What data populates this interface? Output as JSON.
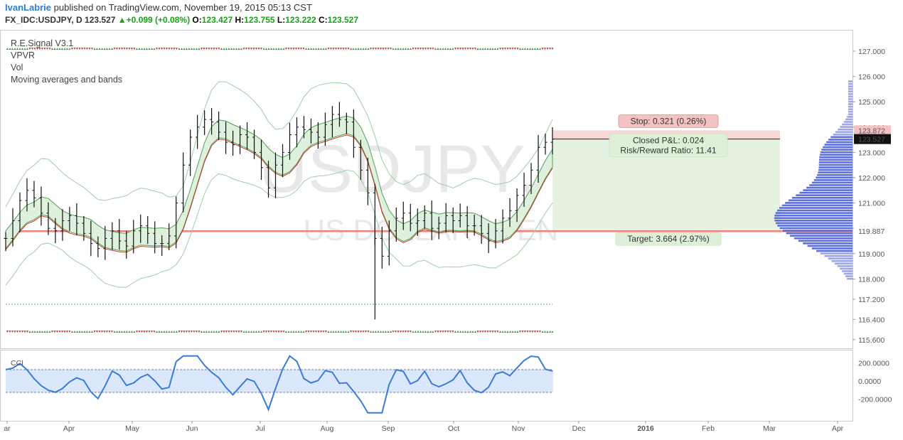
{
  "header": {
    "user": "IvanLabrie",
    "published_text": "published on TradingView.com, November 19, 2015 05:13 CST"
  },
  "quote": {
    "symbol": "FX_IDC:USDJPY, D",
    "last": "123.527",
    "change": "+0.099 (+0.08%)",
    "open_label": "O:",
    "open": "123.427",
    "high_label": "H:",
    "high": "123.755",
    "low_label": "L:",
    "low": "123.222",
    "close_label": "C:",
    "close": "123.527"
  },
  "indicators": [
    "R.E.Signal V3.1",
    "VPVR",
    "Vol",
    "Moving averages and bands"
  ],
  "watermark": {
    "symbol": "USDJPY, D",
    "name": "US DOLLAR / YEN"
  },
  "price_axis": {
    "ticks": [
      "127.000",
      "126.000",
      "125.000",
      "124.000",
      "123.000",
      "122.000",
      "121.000",
      "120.000",
      "119.000",
      "118.000",
      "117.200",
      "116.400",
      "115.600"
    ],
    "last_price_label": "123.527",
    "stop_price_label": "123.872",
    "target_price_label": "119.887"
  },
  "position": {
    "stop_label": "Stop: 0.321 (0.26%)",
    "pnl_label": "Closed P&L: 0.024",
    "rr_label": "Risk/Reward Ratio: 11.41",
    "target_label": "Target: 3.664 (2.97%)"
  },
  "cci": {
    "label": "CCI",
    "ticks": [
      "200.0000",
      "0.0000",
      "-200.0000"
    ]
  },
  "time_axis": [
    "ar",
    "Apr",
    "May",
    "Jun",
    "Jul",
    "Aug",
    "Sep",
    "Oct",
    "Nov",
    "Dec",
    "2016",
    "Feb",
    "Mar",
    "Apr"
  ],
  "colors": {
    "stop_zone": "#f4c7c7",
    "target_zone": "#e6f2e1",
    "target_line": "#f08080",
    "volume_profile": "#4a5fd8",
    "cci_line": "#3a7bd5",
    "band_fill": "#dff0df",
    "up_marker": "#2e9d2e",
    "down_marker": "#d32f2f"
  },
  "chart_data": {
    "type": "line",
    "title": "FX_IDC:USDJPY, D",
    "xlabel": "",
    "ylabel": "",
    "ylim": [
      115.6,
      127.4
    ],
    "series": [
      {
        "values": [
          119.6,
          120.3,
          121.1,
          121.5,
          121.2,
          120.6,
          120.0,
          119.9,
          120.3,
          120.5,
          120.2,
          119.8,
          119.4,
          119.2,
          119.6,
          119.9,
          119.5,
          119.3,
          119.9,
          120.1,
          119.8,
          119.4,
          119.4,
          119.7,
          121.0,
          122.5,
          123.6,
          124.0,
          124.3,
          124.2,
          123.8,
          123.4,
          123.3,
          123.7,
          123.6,
          123.0,
          122.4,
          121.6,
          122.5,
          123.0,
          123.7,
          124.0,
          123.9,
          123.8,
          123.6,
          124.1,
          124.5,
          124.3,
          124.2,
          123.2,
          122.3,
          121.4,
          119.6,
          118.9,
          119.9,
          120.4,
          120.6,
          120.2,
          120.3,
          120.6,
          120.0,
          120.2,
          120.5,
          120.3,
          120.5,
          120.1,
          120.1,
          119.8,
          119.5,
          119.9,
          120.4,
          120.7,
          121.3,
          121.7,
          122.3,
          123.2,
          123.4,
          123.527
        ]
      }
    ]
  }
}
